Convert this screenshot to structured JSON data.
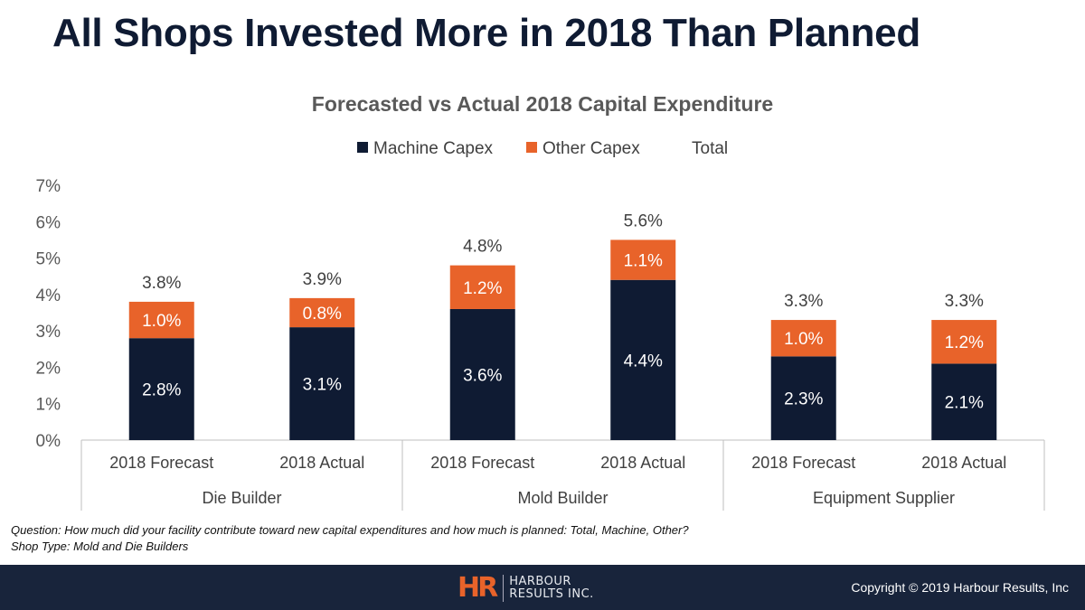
{
  "slide_title": "All Shops Invested More in 2018 Than Planned",
  "notes": {
    "question": "Question: How much did your facility contribute toward new capital expenditures and how much is planned: Total, Machine, Other?",
    "shop_type": "Shop Type: Mold and Die Builders"
  },
  "footer": {
    "logo_mark": "HR",
    "logo_line1": "HARBOUR",
    "logo_line2": "RESULTS INC.",
    "copyright": "Copyright © 2019 Harbour Results, Inc"
  },
  "colors": {
    "machine": "#0f1b33",
    "other": "#e8632a",
    "axis_text": "#595959",
    "footer_bg": "#18243b"
  },
  "chart_data": {
    "type": "bar",
    "stacked": true,
    "title": "Forecasted vs Actual 2018 Capital Expenditure",
    "legend_position": "top",
    "legend": [
      "Machine Capex",
      "Other Capex",
      "Total"
    ],
    "categories": [
      "2018 Forecast",
      "2018 Actual",
      "2018 Forecast",
      "2018 Actual",
      "2018 Forecast",
      "2018 Actual"
    ],
    "groups": [
      {
        "label": "Die Builder",
        "span": 2
      },
      {
        "label": "Mold Builder",
        "span": 2
      },
      {
        "label": "Equipment Supplier",
        "span": 2
      }
    ],
    "series": [
      {
        "name": "Machine Capex",
        "values": [
          2.8,
          3.1,
          3.6,
          4.4,
          2.3,
          2.1
        ],
        "labels": [
          "2.8%",
          "3.1%",
          "3.6%",
          "4.4%",
          "2.3%",
          "2.1%"
        ]
      },
      {
        "name": "Other Capex",
        "values": [
          1.0,
          0.8,
          1.2,
          1.1,
          1.0,
          1.2
        ],
        "labels": [
          "1.0%",
          "0.8%",
          "1.2%",
          "1.1%",
          "1.0%",
          "1.2%"
        ]
      }
    ],
    "totals": {
      "name": "Total",
      "values": [
        3.8,
        3.9,
        4.8,
        5.6,
        3.3,
        3.3
      ],
      "labels": [
        "3.8%",
        "3.9%",
        "4.8%",
        "5.6%",
        "3.3%",
        "3.3%"
      ]
    },
    "ylim": [
      0,
      7
    ],
    "yticks": [
      "0%",
      "1%",
      "2%",
      "3%",
      "4%",
      "5%",
      "6%",
      "7%"
    ],
    "grid": false
  }
}
